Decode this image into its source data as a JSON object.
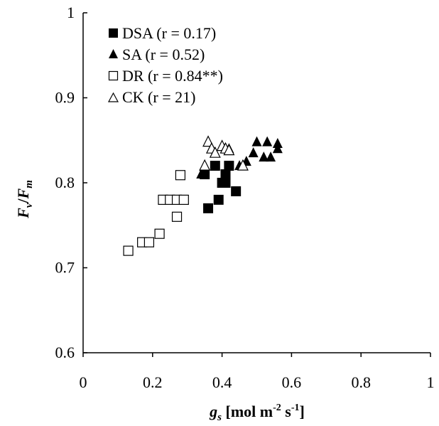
{
  "chart_data": {
    "type": "scatter",
    "title": "",
    "xlabel": {
      "main": "g",
      "sub": "s",
      "units_prefix": " [mol m",
      "sup1": "-2",
      "mid": " s",
      "sup2": "-1",
      "suffix": "]"
    },
    "ylabel": {
      "f": "F",
      "fsub": "v",
      "slash": "/",
      "m": "F",
      "msub": "m"
    },
    "xlim": [
      0,
      1
    ],
    "ylim": [
      0.6,
      1
    ],
    "x_ticks": [
      0,
      0.2,
      0.4,
      0.6,
      0.8,
      1
    ],
    "x_tick_labels": [
      "0",
      "0.2",
      "0.4",
      "0.6",
      "0.8",
      "1"
    ],
    "y_ticks": [
      0.6,
      0.7,
      0.8,
      0.9,
      1
    ],
    "y_tick_labels": [
      "0.6",
      "0.7",
      "0.8",
      "0.9",
      "1"
    ],
    "grid": false,
    "legend_position": "top-left",
    "series": [
      {
        "name": "DSA (r = 0.17)",
        "marker": "square-filled",
        "points": [
          [
            0.35,
            0.81
          ],
          [
            0.38,
            0.82
          ],
          [
            0.4,
            0.8
          ],
          [
            0.41,
            0.81
          ],
          [
            0.42,
            0.82
          ],
          [
            0.41,
            0.8
          ],
          [
            0.44,
            0.79
          ],
          [
            0.39,
            0.78
          ],
          [
            0.36,
            0.77
          ]
        ]
      },
      {
        "name": "SA (r = 0.52)",
        "marker": "triangle-filled",
        "points": [
          [
            0.34,
            0.81
          ],
          [
            0.41,
            0.84
          ],
          [
            0.42,
            0.84
          ],
          [
            0.45,
            0.82
          ],
          [
            0.47,
            0.825
          ],
          [
            0.49,
            0.835
          ],
          [
            0.5,
            0.848
          ],
          [
            0.52,
            0.83
          ],
          [
            0.53,
            0.848
          ],
          [
            0.54,
            0.83
          ],
          [
            0.56,
            0.84
          ],
          [
            0.56,
            0.846
          ]
        ]
      },
      {
        "name": "DR (r = 0.84**)",
        "marker": "square-open",
        "points": [
          [
            0.13,
            0.72
          ],
          [
            0.17,
            0.73
          ],
          [
            0.19,
            0.73
          ],
          [
            0.22,
            0.74
          ],
          [
            0.23,
            0.78
          ],
          [
            0.25,
            0.78
          ],
          [
            0.27,
            0.78
          ],
          [
            0.27,
            0.76
          ],
          [
            0.28,
            0.809
          ],
          [
            0.29,
            0.78
          ]
        ]
      },
      {
        "name": "CK (r = 21)",
        "marker": "triangle-open",
        "points": [
          [
            0.35,
            0.82
          ],
          [
            0.36,
            0.848
          ],
          [
            0.37,
            0.84
          ],
          [
            0.38,
            0.835
          ],
          [
            0.4,
            0.843
          ],
          [
            0.41,
            0.84
          ],
          [
            0.42,
            0.838
          ],
          [
            0.46,
            0.82
          ]
        ]
      }
    ]
  }
}
